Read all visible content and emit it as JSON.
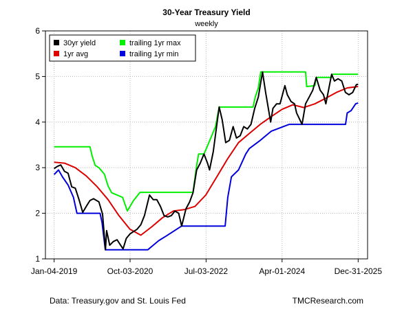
{
  "chart_data": {
    "type": "line",
    "title": "30-Year Treasury Yield",
    "subtitle": "weekly",
    "xlabel": "",
    "ylabel": "",
    "x_ticks": [
      "Jan-04-2019",
      "Oct-03-2020",
      "Jul-03-2022",
      "Apr-01-2024",
      "Dec-31-2025"
    ],
    "xlim": [
      "2018-10-23",
      "2026-03-20"
    ],
    "ylim": [
      1,
      6
    ],
    "y_ticks": [
      1,
      2,
      3,
      4,
      5,
      6
    ],
    "grid": true,
    "legend_position": "top-left",
    "series": [
      {
        "name": "30yr yield",
        "color": "#000000",
        "points": [
          [
            "2019-01-04",
            2.98
          ],
          [
            "2019-02-01",
            3.03
          ],
          [
            "2019-03-01",
            3.06
          ],
          [
            "2019-04-01",
            2.92
          ],
          [
            "2019-05-01",
            2.88
          ],
          [
            "2019-06-01",
            2.58
          ],
          [
            "2019-07-01",
            2.55
          ],
          [
            "2019-08-01",
            2.3
          ],
          [
            "2019-09-01",
            2.02
          ],
          [
            "2019-10-01",
            2.15
          ],
          [
            "2019-11-01",
            2.28
          ],
          [
            "2019-12-01",
            2.32
          ],
          [
            "2020-01-15",
            2.25
          ],
          [
            "2020-02-15",
            1.98
          ],
          [
            "2020-03-10",
            1.2
          ],
          [
            "2020-03-20",
            1.62
          ],
          [
            "2020-04-15",
            1.3
          ],
          [
            "2020-05-15",
            1.38
          ],
          [
            "2020-06-15",
            1.42
          ],
          [
            "2020-07-15",
            1.3
          ],
          [
            "2020-08-05",
            1.22
          ],
          [
            "2020-09-01",
            1.45
          ],
          [
            "2020-10-03",
            1.55
          ],
          [
            "2020-11-01",
            1.6
          ],
          [
            "2020-12-01",
            1.65
          ],
          [
            "2021-01-01",
            1.75
          ],
          [
            "2021-02-01",
            1.95
          ],
          [
            "2021-03-15",
            2.4
          ],
          [
            "2021-04-15",
            2.3
          ],
          [
            "2021-05-15",
            2.3
          ],
          [
            "2021-06-15",
            2.15
          ],
          [
            "2021-07-15",
            1.95
          ],
          [
            "2021-08-15",
            1.92
          ],
          [
            "2021-09-15",
            1.95
          ],
          [
            "2021-10-15",
            2.05
          ],
          [
            "2021-11-15",
            2.0
          ],
          [
            "2021-12-10",
            1.72
          ],
          [
            "2022-01-15",
            2.1
          ],
          [
            "2022-02-15",
            2.25
          ],
          [
            "2022-03-15",
            2.45
          ],
          [
            "2022-04-15",
            2.95
          ],
          [
            "2022-05-15",
            3.1
          ],
          [
            "2022-06-15",
            3.3
          ],
          [
            "2022-07-15",
            3.1
          ],
          [
            "2022-08-01",
            2.95
          ],
          [
            "2022-09-01",
            3.35
          ],
          [
            "2022-10-21",
            4.33
          ],
          [
            "2022-11-15",
            4.05
          ],
          [
            "2022-12-15",
            3.55
          ],
          [
            "2023-01-15",
            3.6
          ],
          [
            "2023-02-15",
            3.9
          ],
          [
            "2023-03-15",
            3.65
          ],
          [
            "2023-04-15",
            3.7
          ],
          [
            "2023-05-15",
            3.9
          ],
          [
            "2023-06-15",
            3.85
          ],
          [
            "2023-07-15",
            3.95
          ],
          [
            "2023-08-15",
            4.3
          ],
          [
            "2023-09-15",
            4.55
          ],
          [
            "2023-10-20",
            5.1
          ],
          [
            "2023-11-15",
            4.65
          ],
          [
            "2023-12-27",
            4.0
          ],
          [
            "2024-01-15",
            4.3
          ],
          [
            "2024-02-15",
            4.4
          ],
          [
            "2024-03-15",
            4.4
          ],
          [
            "2024-04-25",
            4.8
          ],
          [
            "2024-05-15",
            4.6
          ],
          [
            "2024-06-15",
            4.45
          ],
          [
            "2024-07-15",
            4.4
          ],
          [
            "2024-08-01",
            4.2
          ],
          [
            "2024-09-16",
            3.95
          ],
          [
            "2024-10-15",
            4.4
          ],
          [
            "2024-11-15",
            4.55
          ],
          [
            "2024-12-15",
            4.7
          ],
          [
            "2025-01-13",
            4.98
          ],
          [
            "2025-02-15",
            4.7
          ],
          [
            "2025-03-15",
            4.6
          ],
          [
            "2025-04-04",
            4.4
          ],
          [
            "2025-05-22",
            5.05
          ],
          [
            "2025-06-15",
            4.9
          ],
          [
            "2025-07-15",
            4.95
          ],
          [
            "2025-08-15",
            4.9
          ],
          [
            "2025-09-15",
            4.65
          ],
          [
            "2025-10-15",
            4.6
          ],
          [
            "2025-11-15",
            4.65
          ],
          [
            "2025-12-15",
            4.82
          ],
          [
            "2025-12-31",
            4.83
          ]
        ]
      },
      {
        "name": "1yr avg",
        "color": "#dd0000",
        "points": [
          [
            "2019-01-04",
            3.12
          ],
          [
            "2019-04-01",
            3.1
          ],
          [
            "2019-07-01",
            3.0
          ],
          [
            "2019-10-01",
            2.82
          ],
          [
            "2020-01-01",
            2.58
          ],
          [
            "2020-04-01",
            2.3
          ],
          [
            "2020-07-01",
            1.95
          ],
          [
            "2020-10-01",
            1.65
          ],
          [
            "2021-01-01",
            1.52
          ],
          [
            "2021-04-01",
            1.7
          ],
          [
            "2021-07-01",
            1.9
          ],
          [
            "2021-10-01",
            2.05
          ],
          [
            "2022-01-01",
            2.08
          ],
          [
            "2022-04-01",
            2.15
          ],
          [
            "2022-07-01",
            2.4
          ],
          [
            "2022-10-01",
            2.8
          ],
          [
            "2023-01-01",
            3.2
          ],
          [
            "2023-04-01",
            3.55
          ],
          [
            "2023-07-01",
            3.75
          ],
          [
            "2023-10-01",
            3.95
          ],
          [
            "2024-01-01",
            4.12
          ],
          [
            "2024-04-01",
            4.28
          ],
          [
            "2024-07-01",
            4.38
          ],
          [
            "2024-10-01",
            4.32
          ],
          [
            "2025-01-01",
            4.4
          ],
          [
            "2025-04-01",
            4.52
          ],
          [
            "2025-07-01",
            4.65
          ],
          [
            "2025-10-01",
            4.75
          ],
          [
            "2025-12-31",
            4.78
          ]
        ]
      },
      {
        "name": "trailing 1yr max",
        "color": "#00ee00",
        "points": [
          [
            "2019-01-04",
            3.46
          ],
          [
            "2019-11-01",
            3.46
          ],
          [
            "2019-11-20",
            3.25
          ],
          [
            "2019-12-15",
            3.05
          ],
          [
            "2020-01-15",
            3.0
          ],
          [
            "2020-03-01",
            2.86
          ],
          [
            "2020-04-01",
            2.6
          ],
          [
            "2020-05-01",
            2.45
          ],
          [
            "2020-08-01",
            2.35
          ],
          [
            "2020-09-10",
            2.05
          ],
          [
            "2020-11-01",
            2.28
          ],
          [
            "2020-12-25",
            2.46
          ],
          [
            "2022-03-15",
            2.46
          ],
          [
            "2022-04-15",
            3.05
          ],
          [
            "2022-05-01",
            3.3
          ],
          [
            "2022-06-15",
            3.3
          ],
          [
            "2022-07-15",
            3.48
          ],
          [
            "2022-09-20",
            3.9
          ],
          [
            "2022-10-21",
            4.33
          ],
          [
            "2023-08-01",
            4.33
          ],
          [
            "2023-08-20",
            4.55
          ],
          [
            "2023-09-15",
            4.75
          ],
          [
            "2023-10-05",
            5.1
          ],
          [
            "2024-10-15",
            5.1
          ],
          [
            "2024-10-25",
            4.78
          ],
          [
            "2025-01-01",
            4.8
          ],
          [
            "2025-01-13",
            4.98
          ],
          [
            "2025-05-22",
            4.98
          ],
          [
            "2025-05-29",
            5.05
          ],
          [
            "2025-12-31",
            5.05
          ]
        ]
      },
      {
        "name": "trailing 1yr min",
        "color": "#0000dd",
        "points": [
          [
            "2019-01-04",
            2.85
          ],
          [
            "2019-02-10",
            2.95
          ],
          [
            "2019-03-15",
            2.8
          ],
          [
            "2019-05-01",
            2.62
          ],
          [
            "2019-06-15",
            2.35
          ],
          [
            "2019-07-15",
            2.0
          ],
          [
            "2020-01-25",
            2.0
          ],
          [
            "2020-02-10",
            1.8
          ],
          [
            "2020-03-09",
            1.2
          ],
          [
            "2021-03-01",
            1.2
          ],
          [
            "2021-04-15",
            1.3
          ],
          [
            "2021-06-01",
            1.4
          ],
          [
            "2021-08-01",
            1.5
          ],
          [
            "2021-12-10",
            1.72
          ],
          [
            "2022-12-10",
            1.72
          ],
          [
            "2023-01-01",
            2.35
          ],
          [
            "2023-02-01",
            2.8
          ],
          [
            "2023-04-01",
            2.95
          ],
          [
            "2023-06-01",
            3.3
          ],
          [
            "2023-07-01",
            3.42
          ],
          [
            "2023-10-01",
            3.6
          ],
          [
            "2024-01-01",
            3.8
          ],
          [
            "2024-06-01",
            3.95
          ],
          [
            "2024-09-16",
            3.95
          ],
          [
            "2025-09-16",
            3.95
          ],
          [
            "2025-09-30",
            4.2
          ],
          [
            "2025-11-01",
            4.25
          ],
          [
            "2025-12-10",
            4.4
          ],
          [
            "2025-12-31",
            4.42
          ]
        ]
      }
    ]
  },
  "footer": {
    "source": "Data: Treasury.gov and St. Louis Fed",
    "credit": "TMCResearch.com"
  }
}
